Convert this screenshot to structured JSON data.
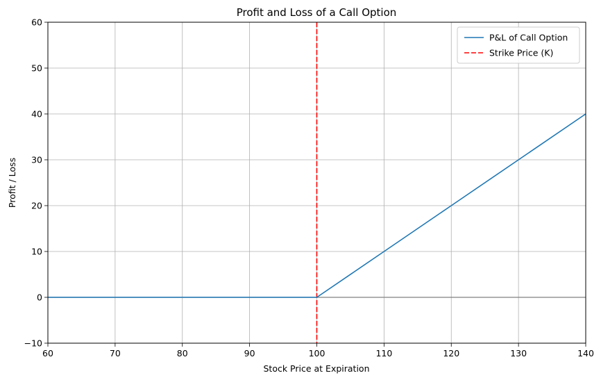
{
  "chart_data": {
    "type": "line",
    "title": "Profit and Loss of a Call Option",
    "xlabel": "Stock Price at Expiration",
    "ylabel": "Profit / Loss",
    "xlim": [
      60,
      140
    ],
    "ylim": [
      -10,
      60
    ],
    "xticks": [
      60,
      70,
      80,
      90,
      100,
      110,
      120,
      130,
      140
    ],
    "yticks": [
      -10,
      0,
      10,
      20,
      30,
      40,
      50,
      60
    ],
    "grid": true,
    "legend_position": "top-right",
    "series": [
      {
        "name": "P&L of Call Option",
        "color": "#1f77b4",
        "style": "solid",
        "x": [
          60,
          70,
          80,
          90,
          100,
          110,
          120,
          130,
          140
        ],
        "y": [
          0,
          0,
          0,
          0,
          0,
          10,
          20,
          30,
          40
        ]
      }
    ],
    "reference_lines": [
      {
        "name": "Strike Price (K)",
        "orientation": "vertical",
        "value": 100,
        "color": "#ff0000",
        "style": "dashed"
      },
      {
        "orientation": "horizontal",
        "value": 0,
        "color": "#808080",
        "style": "solid"
      }
    ]
  }
}
